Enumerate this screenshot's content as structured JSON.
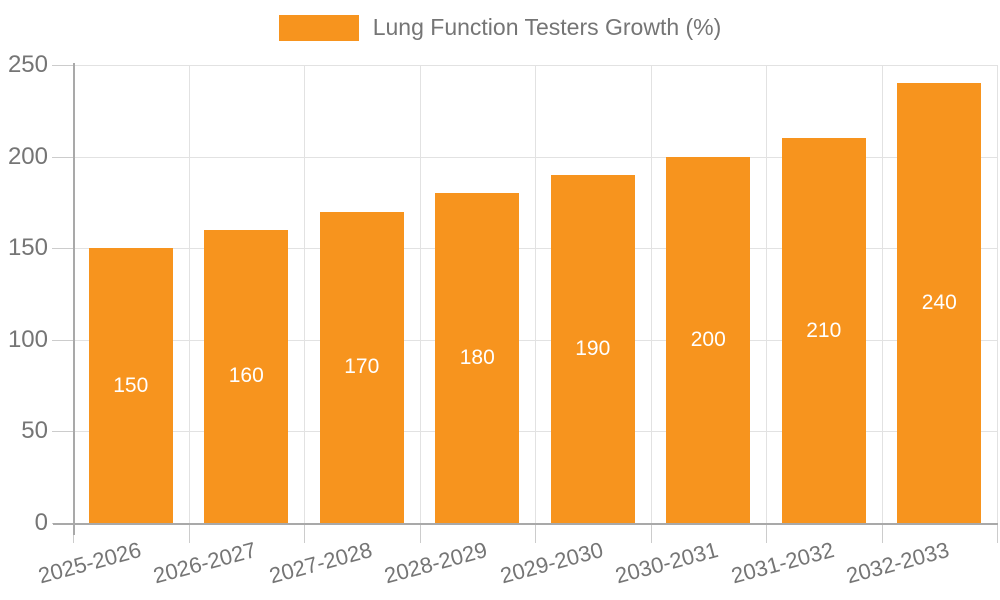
{
  "chart_data": {
    "type": "bar",
    "title": "Lung Function Testers Growth (%)",
    "categories": [
      "2025-2026",
      "2026-2027",
      "2027-2028",
      "2028-2029",
      "2029-2030",
      "2030-2031",
      "2031-2032",
      "2032-2033"
    ],
    "series": [
      {
        "name": "Lung Function Testers Growth (%)",
        "values": [
          150,
          160,
          170,
          180,
          190,
          200,
          210,
          240
        ]
      }
    ],
    "value_labels": [
      "150",
      "160",
      "170",
      "180",
      "190",
      "200",
      "210",
      "240"
    ],
    "xlabel": "",
    "ylabel": "",
    "ylim": [
      0,
      250
    ],
    "yticks": [
      0,
      50,
      100,
      150,
      200,
      250
    ],
    "grid": true,
    "legend_position": "top-center",
    "value_label_position": "inside-center"
  },
  "colors": {
    "bar": "#F7941E",
    "axis_text": "#757575",
    "value_text": "#ffffff",
    "grid_line": "#e2e2e2",
    "tick_line": "#cccccc",
    "axis_line": "#a9a9a9",
    "legend_text": "#757575"
  }
}
